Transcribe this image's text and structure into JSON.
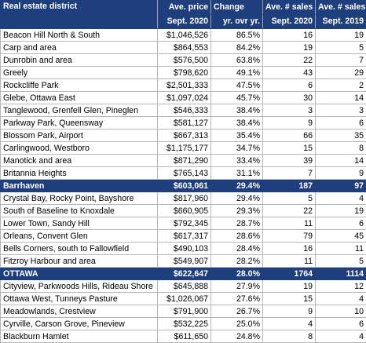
{
  "headers": {
    "district": "Real estate district",
    "price_line1": "Ave. price",
    "price_line2": "Sept. 2020",
    "change_line1": "Change",
    "change_line2": "yr. ovr yr.",
    "sales2020_line1": "Ave. # sales",
    "sales2020_line2": "Sept. 2020",
    "sales2019_line1": "Ave. # sales",
    "sales2019_line2": "Sept. 2019"
  },
  "rows": [
    {
      "district": "Beacon Hill North & South",
      "price": "$1,046,526",
      "change": "86.5%",
      "sales_2020": "16",
      "sales_2019": "19",
      "highlight": false
    },
    {
      "district": "Carp and area",
      "price": "$864,553",
      "change": "84.2%",
      "sales_2020": "19",
      "sales_2019": "5",
      "highlight": false
    },
    {
      "district": "Dunrobin and area",
      "price": "$576,500",
      "change": "63.8%",
      "sales_2020": "22",
      "sales_2019": "7",
      "highlight": false
    },
    {
      "district": "Greely",
      "price": "$798,620",
      "change": "49.1%",
      "sales_2020": "43",
      "sales_2019": "29",
      "highlight": false
    },
    {
      "district": "Rockcliffe Park",
      "price": "$2,501,333",
      "change": "47.5%",
      "sales_2020": "6",
      "sales_2019": "2",
      "highlight": false
    },
    {
      "district": "Glebe, Ottawa East",
      "price": "$1,097,024",
      "change": "45.7%",
      "sales_2020": "30",
      "sales_2019": "14",
      "highlight": false
    },
    {
      "district": "Tanglewood, Grenfell Glen, Pineglen",
      "price": "$546,333",
      "change": "38.4%",
      "sales_2020": "3",
      "sales_2019": "3",
      "highlight": false
    },
    {
      "district": "Parkway Park, Queensway",
      "price": "$581,127",
      "change": "38.4%",
      "sales_2020": "9",
      "sales_2019": "6",
      "highlight": false
    },
    {
      "district": "Blossom Park, Airport",
      "price": "$667,313",
      "change": "35.4%",
      "sales_2020": "66",
      "sales_2019": "35",
      "highlight": false
    },
    {
      "district": "Carlingwood, Westboro",
      "price": "$1,175,177",
      "change": "34.7%",
      "sales_2020": "15",
      "sales_2019": "8",
      "highlight": false
    },
    {
      "district": "Manotick and area",
      "price": "$871,290",
      "change": "33.4%",
      "sales_2020": "39",
      "sales_2019": "14",
      "highlight": false
    },
    {
      "district": "Britannia Heights",
      "price": "$765,143",
      "change": "31.1%",
      "sales_2020": "7",
      "sales_2019": "9",
      "highlight": false
    },
    {
      "district": "Barrhaven",
      "price": "$603,061",
      "change": "29.4%",
      "sales_2020": "187",
      "sales_2019": "97",
      "highlight": true
    },
    {
      "district": "Crystal Bay, Rocky Point, Bayshore",
      "price": "$817,960",
      "change": "29.4%",
      "sales_2020": "5",
      "sales_2019": "4",
      "highlight": false
    },
    {
      "district": "South of Baseline to Knoxdale",
      "price": "$660,905",
      "change": "29.3%",
      "sales_2020": "22",
      "sales_2019": "19",
      "highlight": false
    },
    {
      "district": "Lower Town, Sandy Hill",
      "price": "$792,345",
      "change": "28.7%",
      "sales_2020": "11",
      "sales_2019": "6",
      "highlight": false
    },
    {
      "district": "Orleans, Convent Glen",
      "price": "$617,317",
      "change": "28.6%",
      "sales_2020": "79",
      "sales_2019": "45",
      "highlight": false
    },
    {
      "district": "Bells Corners, south to Fallowfield",
      "price": "$490,103",
      "change": "28.4%",
      "sales_2020": "16",
      "sales_2019": "11",
      "highlight": false
    },
    {
      "district": "Fitzroy Harbour and area",
      "price": "$549,907",
      "change": "28.2%",
      "sales_2020": "11",
      "sales_2019": "5",
      "highlight": false
    },
    {
      "district": "OTTAWA",
      "price": "$622,647",
      "change": "28.0%",
      "sales_2020": "1764",
      "sales_2019": "1114",
      "highlight": true
    },
    {
      "district": "Cityview, Parkwoods Hills, Rideau Shore",
      "price": "$645,888",
      "change": "27.9%",
      "sales_2020": "19",
      "sales_2019": "12",
      "highlight": false
    },
    {
      "district": "Ottawa West, Tunneys Pasture",
      "price": "$1,026,067",
      "change": "27.6%",
      "sales_2020": "15",
      "sales_2019": "4",
      "highlight": false
    },
    {
      "district": "Meadowlands, Crestview",
      "price": "$791,900",
      "change": "26.7%",
      "sales_2020": "9",
      "sales_2019": "10",
      "highlight": false
    },
    {
      "district": "Cyrville, Carson Grove, Pineview",
      "price": "$532,225",
      "change": "25.0%",
      "sales_2020": "4",
      "sales_2019": "6",
      "highlight": false
    },
    {
      "district": "Blackburn Hamlet",
      "price": "$611,650",
      "change": "24.8%",
      "sales_2020": "8",
      "sales_2019": "4",
      "highlight": false
    }
  ],
  "colors": {
    "header_bg": "#1f3e7c",
    "header_text": "#ffffff",
    "grid": "#b7b7b7"
  }
}
